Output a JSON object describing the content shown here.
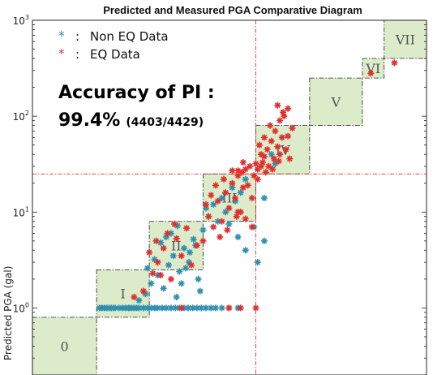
{
  "chart_data": {
    "type": "scatter",
    "title": "Predicted and Measured PGA Comparative Diagram",
    "ylabel": "Predicted PGA (gal)",
    "yscale": "log",
    "ylim": [
      0.2,
      1000
    ],
    "xscale": "log",
    "xlim": [
      0.2,
      1000
    ],
    "y_ticks": [
      {
        "base": "10",
        "exp": "0",
        "value": 1
      },
      {
        "base": "10",
        "exp": "1",
        "value": 10
      },
      {
        "base": "10",
        "exp": "2",
        "value": 100
      },
      {
        "base": "10",
        "exp": "3",
        "value": 1000
      }
    ],
    "legend": [
      {
        "marker": "*",
        "sep": ":",
        "label": "Non EQ Data",
        "color": "#2f8fb0"
      },
      {
        "marker": "*",
        "sep": ":",
        "label": "EQ Data",
        "color": "#e0302e"
      }
    ],
    "annotation": {
      "line1": "Accuracy of PI :",
      "line2_main": "99.4%",
      "line2_count": "(4403/4429)"
    },
    "threshold": {
      "x": 25,
      "y": 25,
      "color": "#e0302e"
    },
    "zones": [
      {
        "label": "0",
        "lo": 0.2,
        "hi": 0.8
      },
      {
        "label": "I",
        "lo": 0.8,
        "hi": 2.5
      },
      {
        "label": "II",
        "lo": 2.5,
        "hi": 8
      },
      {
        "label": "III",
        "lo": 8,
        "hi": 25
      },
      {
        "label": "IV",
        "lo": 25,
        "hi": 80
      },
      {
        "label": "V",
        "lo": 80,
        "hi": 250
      },
      {
        "label": "VI",
        "lo": 250,
        "hi": 400
      },
      {
        "label": "VII",
        "lo": 400,
        "hi": 1000
      }
    ],
    "series": [
      {
        "name": "Non EQ Data",
        "color": "#2f8fb0",
        "points": [
          [
            0.85,
            1.0
          ],
          [
            0.9,
            1.0
          ],
          [
            0.95,
            1.0
          ],
          [
            1.0,
            1.0
          ],
          [
            1.05,
            1.0
          ],
          [
            1.1,
            1.0
          ],
          [
            1.15,
            1.0
          ],
          [
            1.2,
            1.0
          ],
          [
            1.3,
            1.0
          ],
          [
            1.4,
            1.0
          ],
          [
            1.5,
            1.0
          ],
          [
            1.6,
            1.0
          ],
          [
            1.7,
            1.0
          ],
          [
            1.8,
            1.0
          ],
          [
            1.9,
            1.0
          ],
          [
            2.0,
            1.0
          ],
          [
            2.2,
            1.0
          ],
          [
            2.4,
            1.0
          ],
          [
            2.6,
            1.0
          ],
          [
            2.8,
            1.0
          ],
          [
            3.0,
            1.0
          ],
          [
            3.3,
            1.0
          ],
          [
            3.6,
            1.0
          ],
          [
            4.0,
            1.0
          ],
          [
            4.4,
            1.0
          ],
          [
            4.8,
            1.0
          ],
          [
            5.3,
            1.0
          ],
          [
            5.8,
            1.0
          ],
          [
            6.4,
            1.0
          ],
          [
            7.0,
            1.0
          ],
          [
            7.7,
            1.0
          ],
          [
            8.5,
            1.0
          ],
          [
            9.5,
            1.0
          ],
          [
            10.5,
            1.0
          ],
          [
            12,
            1.0
          ],
          [
            14,
            1.0
          ],
          [
            17,
            1.0
          ],
          [
            2.0,
            1.2
          ],
          [
            2.3,
            1.4
          ],
          [
            2.6,
            1.8
          ],
          [
            3.0,
            2.2
          ],
          [
            3.4,
            1.6
          ],
          [
            3.8,
            2.8
          ],
          [
            4.2,
            3.5
          ],
          [
            4.8,
            2.4
          ],
          [
            5.3,
            4.2
          ],
          [
            5.9,
            3.0
          ],
          [
            6.5,
            5.2
          ],
          [
            7.2,
            2.0
          ],
          [
            8.0,
            6.5
          ],
          [
            2.8,
            3.2
          ],
          [
            3.2,
            4.8
          ],
          [
            4.0,
            6.0
          ],
          [
            4.5,
            1.3
          ],
          [
            5.0,
            1.8
          ],
          [
            5.5,
            2.6
          ],
          [
            6.0,
            3.8
          ],
          [
            6.8,
            4.5
          ],
          [
            7.5,
            1.5
          ],
          [
            3.6,
            5.5
          ],
          [
            2.4,
            2.6
          ],
          [
            4.6,
            7.2
          ],
          [
            9.0,
            9.0
          ],
          [
            10,
            12
          ],
          [
            12,
            14
          ],
          [
            13,
            10
          ],
          [
            15,
            18
          ],
          [
            11,
            8
          ],
          [
            14,
            7.5
          ],
          [
            16,
            13
          ],
          [
            18,
            16
          ],
          [
            20,
            22
          ],
          [
            8.5,
            11
          ],
          [
            26,
            3.0
          ],
          [
            20,
            4.0
          ],
          [
            17,
            5.5
          ],
          [
            30,
            5.0
          ],
          [
            24,
            7.0
          ],
          [
            30,
            14
          ],
          [
            35,
            40
          ],
          [
            38,
            32
          ]
        ]
      },
      {
        "name": "EQ Data",
        "color": "#e0302e",
        "points": [
          [
            1.8,
            1.3
          ],
          [
            2.2,
            1.5
          ],
          [
            2.7,
            2.3
          ],
          [
            3.0,
            3.0
          ],
          [
            3.4,
            4.2
          ],
          [
            4.0,
            2.0
          ],
          [
            4.5,
            5.3
          ],
          [
            5.0,
            3.5
          ],
          [
            5.6,
            6.8
          ],
          [
            6.2,
            2.8
          ],
          [
            7.0,
            4.5
          ],
          [
            2.5,
            3.8
          ],
          [
            3.2,
            2.2
          ],
          [
            3.7,
            6.0
          ],
          [
            4.3,
            7.5
          ],
          [
            2.9,
            5.0
          ],
          [
            8.0,
            5.0
          ],
          [
            9.0,
            9.0
          ],
          [
            10,
            7.0
          ],
          [
            11,
            13
          ],
          [
            12,
            8.0
          ],
          [
            13,
            16
          ],
          [
            14,
            11
          ],
          [
            15,
            20
          ],
          [
            16,
            14
          ],
          [
            17,
            24
          ],
          [
            18,
            10
          ],
          [
            19,
            18
          ],
          [
            8.5,
            12
          ],
          [
            9.5,
            15
          ],
          [
            10.5,
            19
          ],
          [
            12.5,
            22
          ],
          [
            13.5,
            6.5
          ],
          [
            11.5,
            5.5
          ],
          [
            16.5,
            9.0
          ],
          [
            18.5,
            26
          ],
          [
            20,
            28
          ],
          [
            22,
            30
          ],
          [
            21,
            19
          ],
          [
            23,
            14
          ],
          [
            24,
            24
          ],
          [
            19,
            33
          ],
          [
            17,
            27
          ],
          [
            26,
            22
          ],
          [
            28,
            30
          ],
          [
            30,
            38
          ],
          [
            32,
            45
          ],
          [
            35,
            55
          ],
          [
            38,
            70
          ],
          [
            42,
            90
          ],
          [
            45,
            110
          ],
          [
            28,
            40
          ],
          [
            33,
            30
          ],
          [
            36,
            28
          ],
          [
            40,
            48
          ],
          [
            44,
            60
          ],
          [
            30,
            60
          ],
          [
            34,
            80
          ],
          [
            27,
            50
          ],
          [
            48,
            45
          ],
          [
            50,
            62
          ],
          [
            52,
            36
          ],
          [
            55,
            75
          ],
          [
            40,
            130
          ],
          [
            46,
            100
          ],
          [
            50,
            120
          ],
          [
            42,
            40
          ],
          [
            29,
            33
          ],
          [
            26,
            28
          ],
          [
            25,
            32
          ],
          [
            31,
            26
          ],
          [
            37,
            36
          ],
          [
            41,
            34
          ],
          [
            23,
            7.0
          ],
          [
            20,
            8.5
          ],
          [
            17,
            10
          ],
          [
            15,
            27
          ],
          [
            5.0,
            1.0
          ],
          [
            25,
            1.0
          ],
          [
            18,
            1.0
          ],
          [
            14,
            1.0
          ],
          [
            300,
            280
          ],
          [
            500,
            360
          ]
        ]
      }
    ]
  }
}
